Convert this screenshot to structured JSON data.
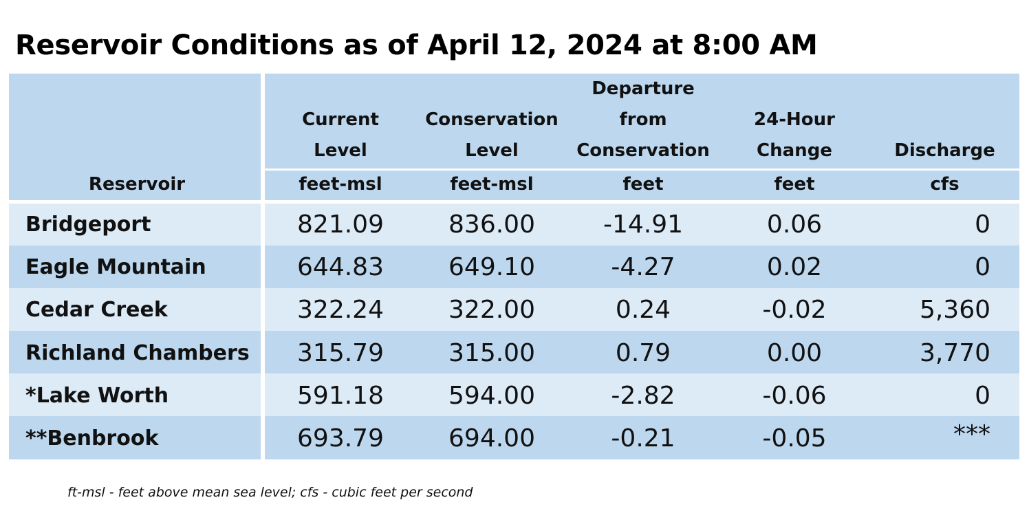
{
  "title": "Reservoir Conditions as of April 12, 2024 at 8:00 AM",
  "table": {
    "header": {
      "reservoir": "Reservoir",
      "current_level": [
        "Current",
        "Level"
      ],
      "conservation_level": [
        "Conservation",
        "Level"
      ],
      "departure": [
        "Departure",
        "from",
        "Conservation"
      ],
      "change_24h": [
        "24-Hour",
        "Change"
      ],
      "discharge": [
        "Discharge"
      ]
    },
    "units": {
      "current_level": "feet-msl",
      "conservation_level": "feet-msl",
      "departure": "feet",
      "change_24h": "feet",
      "discharge": "cfs"
    },
    "rows": [
      {
        "name": "Bridgeport",
        "current": "821.09",
        "conservation": "836.00",
        "departure": "-14.91",
        "change": "0.06",
        "discharge": "0"
      },
      {
        "name": "Eagle Mountain",
        "current": "644.83",
        "conservation": "649.10",
        "departure": "-4.27",
        "change": "0.02",
        "discharge": "0"
      },
      {
        "name": "Cedar Creek",
        "current": "322.24",
        "conservation": "322.00",
        "departure": "0.24",
        "change": "-0.02",
        "discharge": "5,360"
      },
      {
        "name": "Richland Chambers",
        "current": "315.79",
        "conservation": "315.00",
        "departure": "0.79",
        "change": "0.00",
        "discharge": "3,770"
      },
      {
        "name": "*Lake Worth",
        "current": "591.18",
        "conservation": "594.00",
        "departure": "-2.82",
        "change": "-0.06",
        "discharge": "0"
      },
      {
        "name": "**Benbrook",
        "current": "693.79",
        "conservation": "694.00",
        "departure": "-0.21",
        "change": "-0.05",
        "discharge": "***"
      }
    ]
  },
  "footnote": "ft-msl - feet above mean sea level; cfs - cubic feet per second",
  "colors": {
    "header_fill": "#bdd7ee",
    "row_light": "#ddebf7",
    "row_medium": "#bdd7ee"
  }
}
